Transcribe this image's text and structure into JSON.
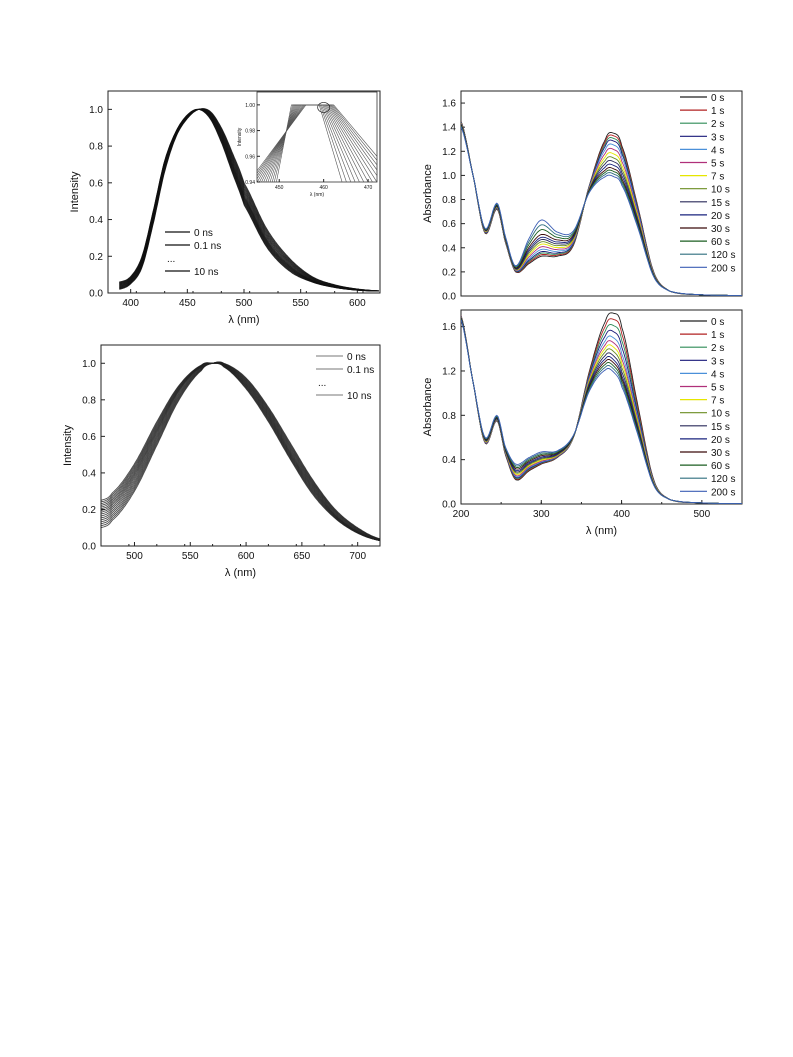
{
  "chart_data": [
    {
      "id": "tl",
      "type": "line",
      "xlabel": "λ (nm)",
      "ylabel": "Intensity",
      "xlim": [
        380,
        620
      ],
      "ylim": [
        0,
        1.1
      ],
      "xticks": [
        400,
        450,
        500,
        550,
        600
      ],
      "yticks": [
        0.0,
        0.2,
        0.4,
        0.6,
        0.8,
        1.0
      ],
      "legend_position": "lower-middle",
      "legend": [
        "0 ns",
        "0.1 ns",
        "...",
        "10 ns"
      ],
      "series_description": "many overlapping curves, normalized",
      "series": [
        {
          "name": "0 ns",
          "x": [
            390,
            400,
            410,
            420,
            430,
            440,
            450,
            460,
            470,
            480,
            490,
            500,
            520,
            540,
            560,
            580,
            600,
            620
          ],
          "values": [
            0.06,
            0.09,
            0.2,
            0.45,
            0.72,
            0.88,
            0.97,
            1.0,
            0.95,
            0.82,
            0.65,
            0.48,
            0.25,
            0.12,
            0.06,
            0.03,
            0.015,
            0.01
          ]
        },
        {
          "name": "0.1 ns",
          "x": [
            390,
            400,
            410,
            420,
            430,
            440,
            450,
            460,
            470,
            480,
            490,
            500,
            520,
            540,
            560,
            580,
            600,
            620
          ],
          "values": [
            0.04,
            0.07,
            0.17,
            0.42,
            0.7,
            0.87,
            0.96,
            1.0,
            0.97,
            0.86,
            0.7,
            0.53,
            0.29,
            0.15,
            0.07,
            0.035,
            0.018,
            0.01
          ]
        },
        {
          "name": "10 ns",
          "x": [
            390,
            400,
            410,
            420,
            430,
            440,
            450,
            460,
            470,
            480,
            490,
            500,
            520,
            540,
            560,
            580,
            600,
            620
          ],
          "values": [
            0.02,
            0.05,
            0.14,
            0.38,
            0.66,
            0.85,
            0.95,
            1.0,
            0.99,
            0.9,
            0.76,
            0.6,
            0.35,
            0.19,
            0.09,
            0.045,
            0.022,
            0.012
          ]
        }
      ],
      "inset": {
        "xlabel": "λ (nm)",
        "ylabel": "Intensity",
        "xlim": [
          445,
          472
        ],
        "ylim": [
          0.94,
          1.01
        ],
        "xticks": [
          450,
          460,
          470
        ],
        "yticks": [
          0.94,
          0.96,
          0.98,
          1.0
        ]
      }
    },
    {
      "id": "bl",
      "type": "line",
      "xlabel": "λ (nm)",
      "ylabel": "Intensity",
      "xlim": [
        470,
        720
      ],
      "ylim": [
        0,
        1.1
      ],
      "xticks": [
        500,
        550,
        600,
        650,
        700
      ],
      "yticks": [
        0.0,
        0.2,
        0.4,
        0.6,
        0.8,
        1.0
      ],
      "legend_position": "top-right",
      "legend": [
        "0 ns",
        "0.1 ns",
        "...",
        "10 ns"
      ],
      "series": [
        {
          "name": "0 ns",
          "x": [
            470,
            480,
            500,
            520,
            540,
            560,
            570,
            580,
            600,
            620,
            640,
            660,
            680,
            700,
            720
          ],
          "values": [
            0.25,
            0.29,
            0.45,
            0.68,
            0.88,
            0.99,
            1.0,
            0.98,
            0.86,
            0.68,
            0.47,
            0.28,
            0.15,
            0.07,
            0.03
          ]
        },
        {
          "name": "0.1 ns",
          "x": [
            470,
            480,
            500,
            520,
            540,
            560,
            570,
            580,
            600,
            620,
            640,
            660,
            680,
            700,
            720
          ],
          "values": [
            0.18,
            0.22,
            0.38,
            0.62,
            0.85,
            0.98,
            1.0,
            0.99,
            0.89,
            0.72,
            0.51,
            0.32,
            0.17,
            0.08,
            0.03
          ]
        },
        {
          "name": "10 ns",
          "x": [
            470,
            480,
            500,
            520,
            540,
            560,
            570,
            580,
            600,
            620,
            640,
            660,
            680,
            700,
            720
          ],
          "values": [
            0.1,
            0.14,
            0.3,
            0.55,
            0.8,
            0.96,
            1.0,
            1.0,
            0.92,
            0.76,
            0.56,
            0.36,
            0.2,
            0.1,
            0.04
          ]
        }
      ]
    },
    {
      "id": "tr",
      "type": "line",
      "xlabel": "",
      "ylabel": "Absorbance",
      "xlim": [
        200,
        550
      ],
      "ylim": [
        0,
        1.7
      ],
      "xticks": [],
      "yticks": [
        0.0,
        0.2,
        0.4,
        0.6,
        0.8,
        1.0,
        1.2,
        1.4,
        1.6
      ],
      "legend_position": "top-right",
      "legend": [
        "0 s",
        "1 s",
        "2 s",
        "3 s",
        "4 s",
        "5 s",
        "7 s",
        "10 s",
        "15 s",
        "20 s",
        "30 s",
        "60 s",
        "120 s",
        "200 s"
      ],
      "colors": [
        "#222222",
        "#b22222",
        "#2e8b57",
        "#1a1a7a",
        "#4a90d9",
        "#b0307a",
        "#e6e600",
        "#6b8e23",
        "#2a2a5a",
        "#1a237e",
        "#3b0a0a",
        "#1b5e20",
        "#2f6f7f",
        "#3d5fb5"
      ],
      "series": [
        {
          "name": "0 s",
          "x": [
            200,
            215,
            230,
            245,
            255,
            268,
            285,
            300,
            320,
            340,
            360,
            380,
            390,
            400,
            420,
            440,
            460,
            500,
            550
          ],
          "values": [
            1.45,
            1.0,
            0.52,
            0.72,
            0.45,
            0.2,
            0.27,
            0.33,
            0.33,
            0.42,
            0.92,
            1.3,
            1.35,
            1.25,
            0.75,
            0.2,
            0.04,
            0.01,
            0.005
          ]
        },
        {
          "name": "1 s",
          "x": [
            200,
            215,
            230,
            245,
            255,
            268,
            285,
            300,
            320,
            340,
            360,
            380,
            390,
            400,
            420,
            440,
            460,
            500,
            550
          ],
          "values": [
            1.44,
            1.0,
            0.53,
            0.73,
            0.46,
            0.21,
            0.3,
            0.37,
            0.36,
            0.44,
            0.91,
            1.24,
            1.28,
            1.18,
            0.72,
            0.19,
            0.04,
            0.01,
            0.005
          ]
        },
        {
          "name": "3 s",
          "x": [
            200,
            215,
            230,
            245,
            255,
            268,
            285,
            300,
            320,
            340,
            360,
            380,
            390,
            400,
            420,
            440,
            460,
            500,
            550
          ],
          "values": [
            1.43,
            1.0,
            0.54,
            0.74,
            0.47,
            0.22,
            0.35,
            0.44,
            0.41,
            0.47,
            0.89,
            1.14,
            1.16,
            1.07,
            0.66,
            0.18,
            0.04,
            0.01,
            0.005
          ]
        },
        {
          "name": "10 s",
          "x": [
            200,
            215,
            230,
            245,
            255,
            268,
            285,
            300,
            320,
            340,
            360,
            380,
            390,
            400,
            420,
            440,
            460,
            500,
            550
          ],
          "values": [
            1.42,
            1.0,
            0.55,
            0.75,
            0.48,
            0.23,
            0.4,
            0.5,
            0.46,
            0.5,
            0.88,
            1.05,
            1.06,
            0.98,
            0.61,
            0.17,
            0.04,
            0.01,
            0.005
          ]
        },
        {
          "name": "200 s",
          "x": [
            200,
            215,
            230,
            245,
            255,
            268,
            285,
            300,
            320,
            340,
            360,
            380,
            390,
            400,
            420,
            440,
            460,
            500,
            550
          ],
          "values": [
            1.4,
            1.0,
            0.56,
            0.77,
            0.5,
            0.25,
            0.48,
            0.63,
            0.53,
            0.54,
            0.86,
            0.99,
            0.99,
            0.92,
            0.57,
            0.16,
            0.04,
            0.01,
            0.005
          ]
        }
      ]
    },
    {
      "id": "br",
      "type": "line",
      "xlabel": "λ (nm)",
      "ylabel": "Absorbance",
      "xlim": [
        200,
        550
      ],
      "ylim": [
        0,
        1.75
      ],
      "xticks": [
        200,
        300,
        400,
        500
      ],
      "yticks": [
        0.0,
        0.4,
        0.8,
        1.2,
        1.6
      ],
      "legend_position": "top-right",
      "legend": [
        "0 s",
        "1 s",
        "2 s",
        "3 s",
        "4 s",
        "5 s",
        "7 s",
        "10 s",
        "15 s",
        "20 s",
        "30 s",
        "60 s",
        "120 s",
        "200 s"
      ],
      "colors": [
        "#222222",
        "#b22222",
        "#2e8b57",
        "#1a1a7a",
        "#4a90d9",
        "#b0307a",
        "#e6e600",
        "#6b8e23",
        "#2a2a5a",
        "#1a237e",
        "#3b0a0a",
        "#1b5e20",
        "#2f6f7f",
        "#3d5fb5"
      ],
      "series": [
        {
          "name": "0 s",
          "x": [
            200,
            215,
            230,
            245,
            255,
            268,
            285,
            300,
            320,
            340,
            360,
            380,
            390,
            400,
            420,
            440,
            460,
            500,
            550
          ],
          "values": [
            1.7,
            1.1,
            0.55,
            0.75,
            0.45,
            0.22,
            0.3,
            0.36,
            0.42,
            0.6,
            1.2,
            1.65,
            1.72,
            1.6,
            0.9,
            0.22,
            0.04,
            0.01,
            0.005
          ]
        },
        {
          "name": "2 s",
          "x": [
            200,
            215,
            230,
            245,
            255,
            268,
            285,
            300,
            320,
            340,
            360,
            380,
            390,
            400,
            420,
            440,
            460,
            500,
            550
          ],
          "values": [
            1.69,
            1.1,
            0.56,
            0.76,
            0.47,
            0.25,
            0.33,
            0.38,
            0.43,
            0.6,
            1.14,
            1.46,
            1.48,
            1.34,
            0.78,
            0.2,
            0.04,
            0.01,
            0.005
          ]
        },
        {
          "name": "10 s",
          "x": [
            200,
            215,
            230,
            245,
            255,
            268,
            285,
            300,
            320,
            340,
            360,
            380,
            390,
            400,
            420,
            440,
            460,
            500,
            550
          ],
          "values": [
            1.68,
            1.1,
            0.58,
            0.77,
            0.49,
            0.3,
            0.37,
            0.42,
            0.45,
            0.61,
            1.08,
            1.32,
            1.31,
            1.17,
            0.69,
            0.18,
            0.04,
            0.01,
            0.005
          ]
        },
        {
          "name": "200 s",
          "x": [
            200,
            215,
            230,
            245,
            255,
            268,
            285,
            300,
            320,
            340,
            360,
            380,
            390,
            400,
            420,
            440,
            460,
            500,
            550
          ],
          "values": [
            1.66,
            1.1,
            0.6,
            0.8,
            0.52,
            0.36,
            0.42,
            0.47,
            0.48,
            0.62,
            1.02,
            1.21,
            1.19,
            1.06,
            0.63,
            0.17,
            0.04,
            0.01,
            0.005
          ]
        }
      ]
    }
  ]
}
